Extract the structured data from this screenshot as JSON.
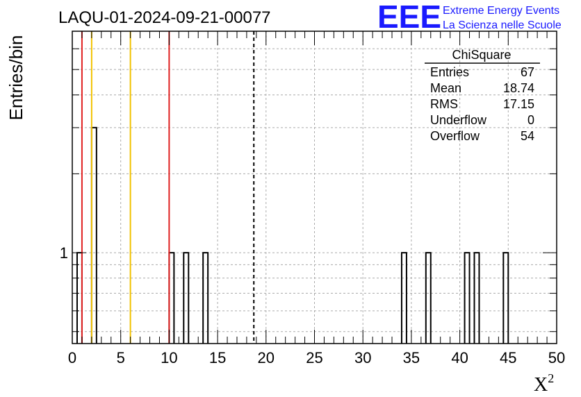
{
  "title": "LAQU-01-2024-09-21-00077",
  "logo": {
    "mark": "EEE",
    "line1": "Extreme Energy Events",
    "line2": "La Scienza nelle Scuole",
    "color": "#1a1aff"
  },
  "stats": {
    "name": "ChiSquare",
    "rows": [
      {
        "label": "Entries",
        "value": "67"
      },
      {
        "label": "Mean",
        "value": "18.74"
      },
      {
        "label": "RMS",
        "value": "17.15"
      },
      {
        "label": "Underflow",
        "value": "0"
      },
      {
        "label": "Overflow",
        "value": "54"
      }
    ]
  },
  "chart_data": {
    "type": "bar",
    "xlabel": "X",
    "xlabel_superscript": "2",
    "ylabel": "Entries/bin",
    "xlim": [
      0,
      50
    ],
    "ylim": [
      0.45,
      7
    ],
    "y_scale": "log",
    "grid": true,
    "x_ticks": [
      0,
      5,
      10,
      15,
      20,
      25,
      30,
      35,
      40,
      45,
      50
    ],
    "y_tick_labels": [
      {
        "value": 1,
        "label": "1"
      }
    ],
    "bin_width": 0.5,
    "bins": [
      {
        "x": 0.5,
        "count": 1
      },
      {
        "x": 2.0,
        "count": 3
      },
      {
        "x": 10.0,
        "count": 1
      },
      {
        "x": 11.5,
        "count": 1
      },
      {
        "x": 13.5,
        "count": 1
      },
      {
        "x": 34.0,
        "count": 1
      },
      {
        "x": 36.5,
        "count": 1
      },
      {
        "x": 40.5,
        "count": 1
      },
      {
        "x": 41.5,
        "count": 1
      },
      {
        "x": 44.5,
        "count": 1
      }
    ],
    "reference_lines": [
      {
        "x": 1.0,
        "color": "#e02020",
        "style": "solid"
      },
      {
        "x": 2.0,
        "color": "#f2c200",
        "style": "solid"
      },
      {
        "x": 6.0,
        "color": "#f2c200",
        "style": "solid"
      },
      {
        "x": 10.0,
        "color": "#e02020",
        "style": "solid"
      },
      {
        "x": 18.74,
        "color": "#000000",
        "style": "dashed"
      }
    ],
    "colors": {
      "bars": "#000000",
      "grid": "#aaaaaa",
      "frame": "#000000"
    }
  }
}
